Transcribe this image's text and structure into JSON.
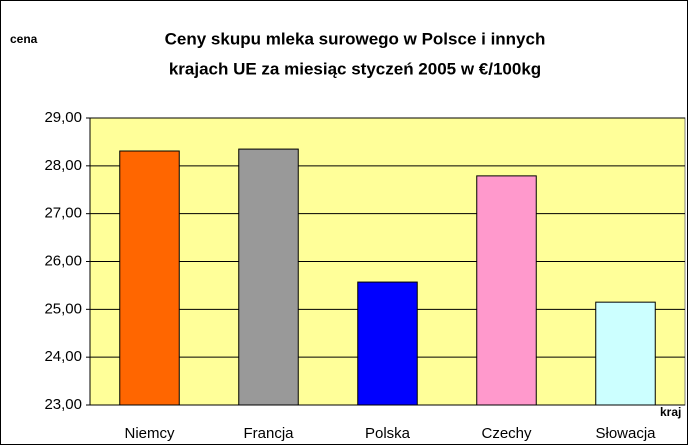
{
  "chart_data": {
    "type": "bar",
    "title": [
      "Ceny skupu mleka surowego w Polsce i innych",
      "krajach UE za miesiąc styczeń 2005 w €/100kg"
    ],
    "y_label": "cena",
    "x_label": "kraj",
    "categories": [
      "Niemcy",
      "Francja",
      "Polska",
      "Czechy",
      "Słowacja"
    ],
    "values": [
      28.31,
      28.35,
      25.57,
      27.79,
      25.15
    ],
    "colors": [
      "#ff6600",
      "#999999",
      "#0000ff",
      "#ff99cc",
      "#ccffff"
    ],
    "ylim": [
      23,
      29
    ],
    "yticks": [
      {
        "value": 23,
        "label": "23,00"
      },
      {
        "value": 24,
        "label": "24,00"
      },
      {
        "value": 25,
        "label": "25,00"
      },
      {
        "value": 26,
        "label": "26,00"
      },
      {
        "value": 27,
        "label": "27,00"
      },
      {
        "value": 28,
        "label": "28,00"
      },
      {
        "value": 29,
        "label": "29,00"
      }
    ],
    "grid": true,
    "plot_background": "#ffff99"
  }
}
